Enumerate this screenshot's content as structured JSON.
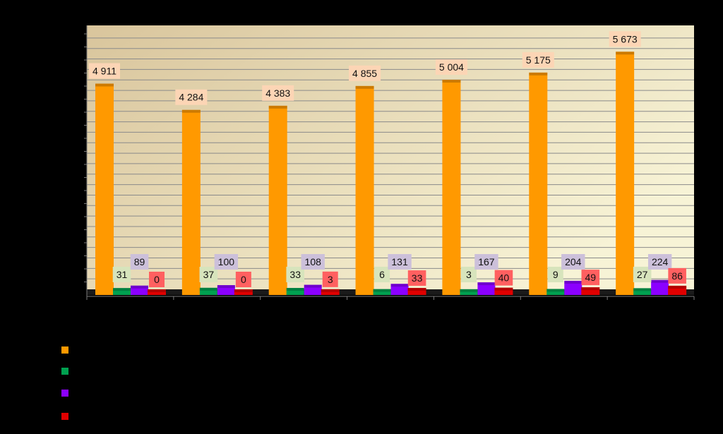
{
  "chart_data": {
    "type": "bar",
    "title": "",
    "xlabel": "",
    "ylabel": "",
    "categories": [
      "",
      "",
      "",
      "",
      "",
      "",
      ""
    ],
    "ylim": [
      0,
      6200
    ],
    "y_ticks_shown": false,
    "grid": true,
    "legend_position": "bottom-left",
    "background_gradient": [
      "#d9c59c",
      "#f7f3d6"
    ],
    "series": [
      {
        "color": "#ff9900",
        "label_bg": "#fcd5b5",
        "values": [
          4911,
          4284,
          4383,
          4855,
          5004,
          5175,
          5673
        ],
        "labels": [
          "4 911",
          "4 284",
          "4 383",
          "4 855",
          "5 004",
          "5 175",
          "5 673"
        ]
      },
      {
        "color": "#00a050",
        "label_bg": "#d7e4bc",
        "values": [
          31,
          37,
          33,
          6,
          3,
          9,
          27
        ],
        "labels": [
          "31",
          "37",
          "33",
          "6",
          "3",
          "9",
          "27"
        ]
      },
      {
        "color": "#8b00ff",
        "label_bg": "#ccc0da",
        "values": [
          89,
          100,
          108,
          131,
          167,
          204,
          224
        ],
        "labels": [
          "89",
          "100",
          "108",
          "131",
          "167",
          "204",
          "224"
        ]
      },
      {
        "color": "#e00000",
        "label_bg": "#ff6060",
        "values": [
          0,
          0,
          3,
          33,
          40,
          49,
          86
        ],
        "labels": [
          "0",
          "0",
          "3",
          "33",
          "40",
          "49",
          "86"
        ]
      }
    ]
  }
}
